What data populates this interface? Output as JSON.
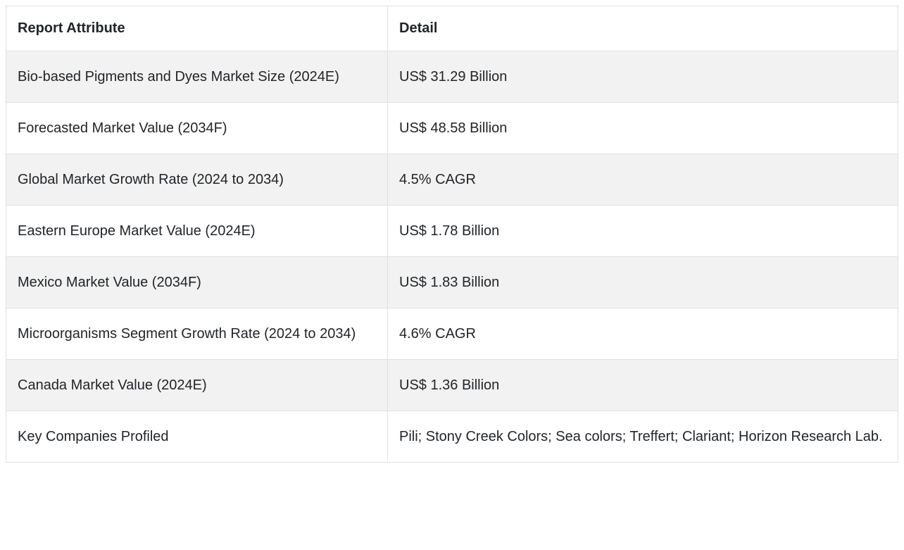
{
  "table": {
    "columns": [
      {
        "label": "Report Attribute"
      },
      {
        "label": "Detail"
      }
    ],
    "rows": [
      {
        "attribute": "Bio-based Pigments and Dyes Market Size (2024E)",
        "detail": "US$ 31.29 Billion"
      },
      {
        "attribute": "Forecasted Market Value (2034F)",
        "detail": "US$ 48.58 Billion"
      },
      {
        "attribute": "Global Market Growth Rate (2024 to 2034)",
        "detail": "4.5% CAGR"
      },
      {
        "attribute": "Eastern Europe Market Value (2024E)",
        "detail": "US$ 1.78 Billion"
      },
      {
        "attribute": "Mexico Market Value (2034F)",
        "detail": "US$ 1.83 Billion"
      },
      {
        "attribute": "Microorganisms Segment Growth Rate (2024 to 2034)",
        "detail": "4.6% CAGR"
      },
      {
        "attribute": "Canada Market Value (2024E)",
        "detail": "US$ 1.36 Billion"
      },
      {
        "attribute": "Key Companies Profiled",
        "detail": "Pili; Stony Creek Colors; Sea colors; Treffert; Clariant; Horizon Research Lab."
      }
    ],
    "colors": {
      "border": "#dee2e6",
      "stripe": "#f2f2f2",
      "text": "#212529",
      "background": "#ffffff"
    }
  }
}
